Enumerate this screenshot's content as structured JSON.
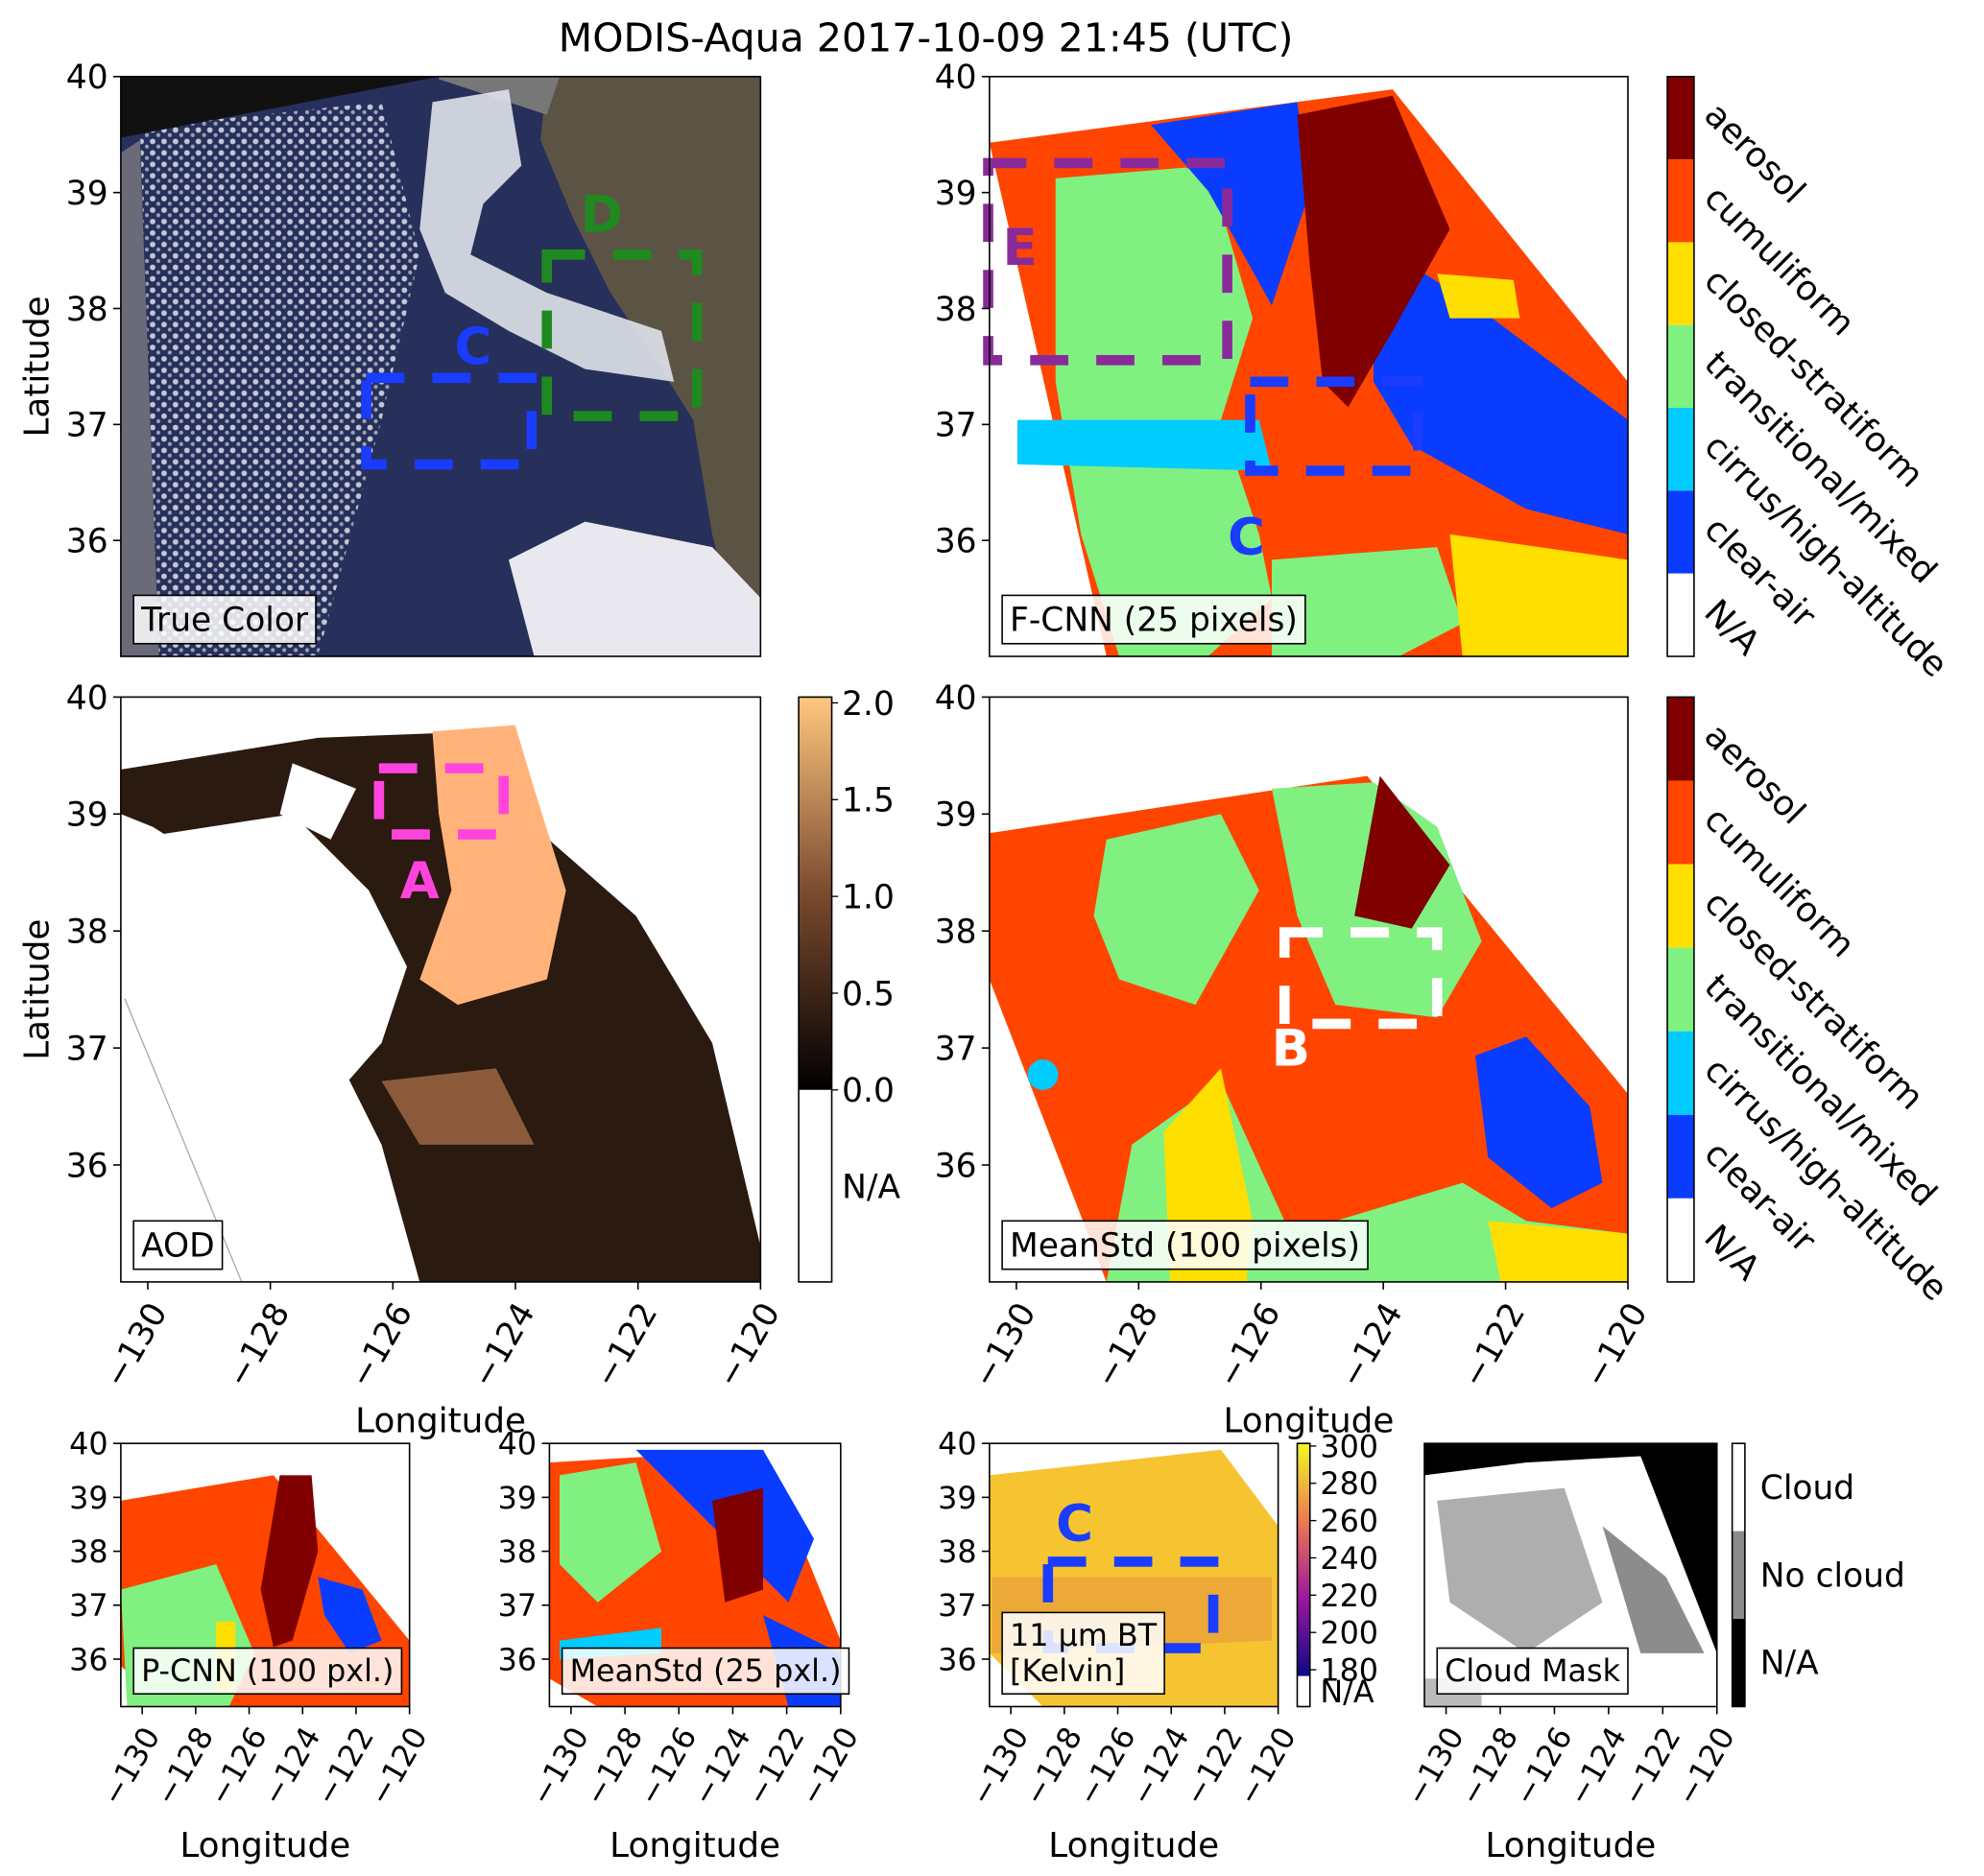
{
  "title": "MODIS-Aqua 2017-10-09 21:45 (UTC)",
  "panels": [
    {
      "label": [
        "True Color"
      ],
      "ylabel": "Latitude",
      "xlim": [
        -130.44,
        -120
      ],
      "ylim": [
        35,
        40
      ],
      "yticks": [
        36,
        37,
        38,
        39,
        40
      ],
      "annotations": [
        "C",
        "D"
      ]
    },
    {
      "label": [
        "F-CNN (25 pixels)"
      ],
      "xlim": [
        -130.44,
        -120
      ],
      "ylim": [
        35,
        40
      ],
      "yticks": [
        36,
        37,
        38,
        39,
        40
      ],
      "annotations": [
        "E",
        "C"
      ],
      "colorbar": {
        "type": "categorical",
        "classes": [
          {
            "label": "aerosol",
            "color": "#800000"
          },
          {
            "label": "cumuliform",
            "color": "#ff4500"
          },
          {
            "label": "closed-stratiform",
            "color": "#ffdf00"
          },
          {
            "label": "transitional/mixed",
            "color": "#80f080"
          },
          {
            "label": "cirrus/high-altitude",
            "color": "#00ccff"
          },
          {
            "label": "clear-air",
            "color": "#0a3cff"
          },
          {
            "label": "N/A",
            "color": "#ffffff"
          }
        ]
      }
    },
    {
      "label": [
        "AOD"
      ],
      "ylabel": "Latitude",
      "xlabel": "Longitude",
      "xlim": [
        -130.44,
        -120
      ],
      "ylim": [
        35,
        40
      ],
      "yticks": [
        36,
        37,
        38,
        39,
        40
      ],
      "xticks": [
        {
          "value": -130,
          "label": "−130"
        },
        {
          "value": -128,
          "label": "−128"
        },
        {
          "value": -126,
          "label": "−126"
        },
        {
          "value": -124,
          "label": "−124"
        },
        {
          "value": -122,
          "label": "−122"
        },
        {
          "value": -120,
          "label": "−120"
        }
      ],
      "annotations": [
        "A"
      ],
      "colorbar": {
        "type": "continuous",
        "cmap": "copper",
        "lim": [
          0,
          2.03
        ],
        "ticks": [
          {
            "value": 0,
            "label": "0.0"
          },
          0.5,
          {
            "value": 1,
            "label": "1.0"
          },
          1.5,
          {
            "value": 2,
            "label": "2.0"
          }
        ],
        "na_label": "N/A"
      }
    },
    {
      "label": [
        "MeanStd (100 pixels)"
      ],
      "xlabel": "Longitude",
      "xlim": [
        -130.44,
        -120
      ],
      "ylim": [
        35,
        40
      ],
      "yticks": [
        36,
        37,
        38,
        39,
        40
      ],
      "xticks": [
        {
          "value": -130,
          "label": "−130"
        },
        {
          "value": -128,
          "label": "−128"
        },
        {
          "value": -126,
          "label": "−126"
        },
        {
          "value": -124,
          "label": "−124"
        },
        {
          "value": -122,
          "label": "−122"
        },
        {
          "value": -120,
          "label": "−120"
        }
      ],
      "annotations": [
        "B"
      ],
      "colorbar": {
        "type": "categorical",
        "classes": [
          {
            "label": "aerosol",
            "color": "#800000"
          },
          {
            "label": "cumuliform",
            "color": "#ff4500"
          },
          {
            "label": "closed-stratiform",
            "color": "#ffdf00"
          },
          {
            "label": "transitional/mixed",
            "color": "#80f080"
          },
          {
            "label": "cirrus/high-altitude",
            "color": "#00ccff"
          },
          {
            "label": "clear-air",
            "color": "#0a3cff"
          },
          {
            "label": "N/A",
            "color": "#ffffff"
          }
        ]
      }
    },
    {
      "label": [
        "P-CNN (100 pxl.)"
      ],
      "xlabel": "Longitude",
      "xlim": [
        -130.8,
        -120
      ],
      "ylim": [
        35.12,
        40
      ],
      "yticks": [
        36,
        37,
        38,
        39,
        40
      ],
      "xticks": [
        {
          "value": -130,
          "label": "−130"
        },
        {
          "value": -128,
          "label": "−128"
        },
        {
          "value": -126,
          "label": "−126"
        },
        {
          "value": -124,
          "label": "−124"
        },
        {
          "value": -122,
          "label": "−122"
        },
        {
          "value": -120,
          "label": "−120"
        }
      ]
    },
    {
      "label": [
        "MeanStd (25 pxl.)"
      ],
      "xlabel": "Longitude",
      "xlim": [
        -130.8,
        -120
      ],
      "ylim": [
        35.12,
        40
      ],
      "yticks": [
        36,
        37,
        38,
        39,
        40
      ],
      "xticks": [
        {
          "value": -130,
          "label": "−130"
        },
        {
          "value": -128,
          "label": "−128"
        },
        {
          "value": -126,
          "label": "−126"
        },
        {
          "value": -124,
          "label": "−124"
        },
        {
          "value": -122,
          "label": "−122"
        },
        {
          "value": -120,
          "label": "−120"
        }
      ]
    },
    {
      "label": [
        "11 μm BT",
        "[Kelvin]"
      ],
      "xlabel": "Longitude",
      "xlim": [
        -130.8,
        -120
      ],
      "ylim": [
        35.12,
        40
      ],
      "yticks": [
        36,
        37,
        38,
        39,
        40
      ],
      "xticks": [
        {
          "value": -130,
          "label": "−130"
        },
        {
          "value": -128,
          "label": "−128"
        },
        {
          "value": -126,
          "label": "−126"
        },
        {
          "value": -124,
          "label": "−124"
        },
        {
          "value": -122,
          "label": "−122"
        },
        {
          "value": -120,
          "label": "−120"
        }
      ],
      "annotations": [
        "C"
      ],
      "colorbar": {
        "type": "continuous",
        "cmap": "plasma",
        "lim": [
          176.6,
          301.4
        ],
        "ticks": [
          180,
          200,
          220,
          240,
          260,
          280,
          300
        ],
        "na_label": "N/A"
      }
    },
    {
      "label": [
        "Cloud Mask"
      ],
      "xlabel": "Longitude",
      "xlim": [
        -130.8,
        -120
      ],
      "ylim": [
        35.12,
        40
      ],
      "xticks": [
        {
          "value": -130,
          "label": "−130"
        },
        {
          "value": -128,
          "label": "−128"
        },
        {
          "value": -126,
          "label": "−126"
        },
        {
          "value": -124,
          "label": "−124"
        },
        {
          "value": -122,
          "label": "−122"
        },
        {
          "value": -120,
          "label": "−120"
        }
      ],
      "colorbar": {
        "type": "categorical",
        "classes": [
          {
            "label": "Cloud",
            "color": "#ffffff"
          },
          {
            "label": "No cloud",
            "color": "#8c8c8c"
          },
          {
            "label": "N/A",
            "color": "#000000"
          }
        ]
      }
    }
  ]
}
